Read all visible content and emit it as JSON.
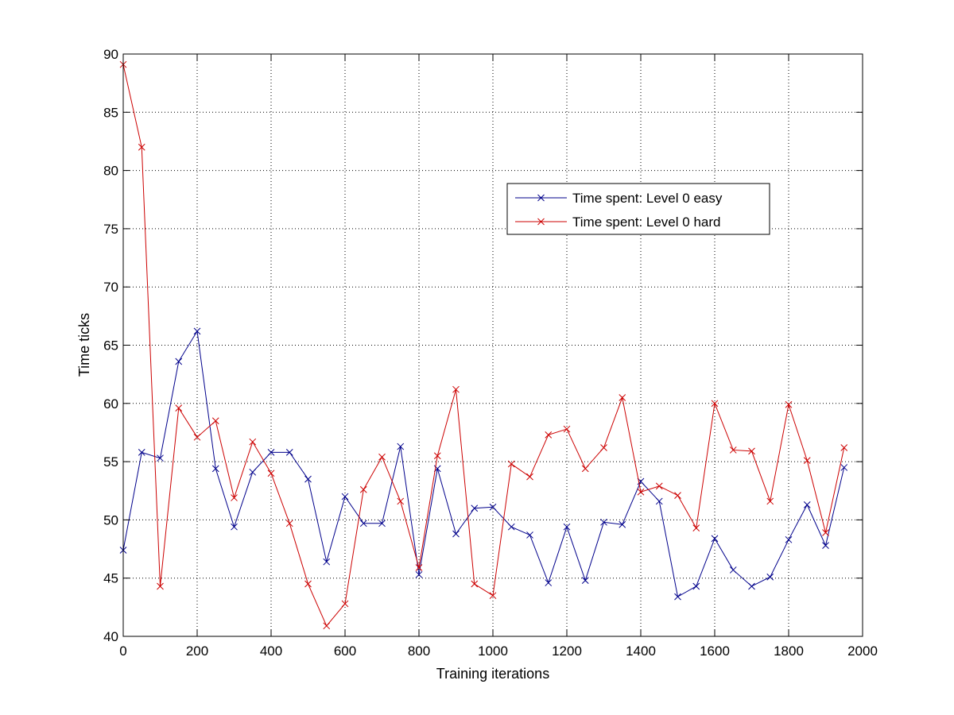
{
  "chart_data": {
    "type": "line",
    "xlabel": "Training iterations",
    "ylabel": "Time ticks",
    "xlim": [
      0,
      2000
    ],
    "ylim": [
      40,
      90
    ],
    "xticks": [
      0,
      200,
      400,
      600,
      800,
      1000,
      1200,
      1400,
      1600,
      1800,
      2000
    ],
    "yticks": [
      40,
      45,
      50,
      55,
      60,
      65,
      70,
      75,
      80,
      85,
      90
    ],
    "grid": true,
    "legend_position": "upper-right",
    "x": [
      0,
      50,
      100,
      150,
      200,
      250,
      300,
      350,
      400,
      450,
      500,
      550,
      600,
      650,
      700,
      750,
      800,
      850,
      900,
      950,
      1000,
      1050,
      1100,
      1150,
      1200,
      1250,
      1300,
      1350,
      1400,
      1450,
      1500,
      1550,
      1600,
      1650,
      1700,
      1750,
      1800,
      1850,
      1900,
      1950
    ],
    "series": [
      {
        "name": "Time spent: Level 0 easy",
        "color": "#00008b",
        "marker": "x",
        "values": [
          47.4,
          55.8,
          55.3,
          63.6,
          66.2,
          54.4,
          49.4,
          54.1,
          55.8,
          55.8,
          53.5,
          46.4,
          52.0,
          49.7,
          49.7,
          56.3,
          45.3,
          54.4,
          48.8,
          51.0,
          51.1,
          49.4,
          48.7,
          44.6,
          49.4,
          44.8,
          49.8,
          49.6,
          53.3,
          51.6,
          43.4,
          44.3,
          48.4,
          45.7,
          44.3,
          45.1,
          48.3,
          51.3,
          47.8,
          54.5
        ]
      },
      {
        "name": "Time spent: Level 0 hard",
        "color": "#cc0000",
        "marker": "x",
        "values": [
          89.1,
          82.0,
          44.3,
          59.6,
          57.1,
          58.5,
          51.9,
          56.7,
          54.0,
          49.7,
          44.5,
          40.9,
          42.8,
          52.6,
          55.4,
          51.6,
          45.9,
          55.5,
          61.2,
          44.5,
          43.5,
          54.8,
          53.7,
          57.3,
          57.8,
          54.4,
          56.2,
          60.5,
          52.4,
          52.9,
          52.1,
          49.3,
          60.0,
          56.0,
          55.9,
          51.6,
          59.9,
          55.1,
          48.9,
          56.2
        ]
      }
    ]
  }
}
